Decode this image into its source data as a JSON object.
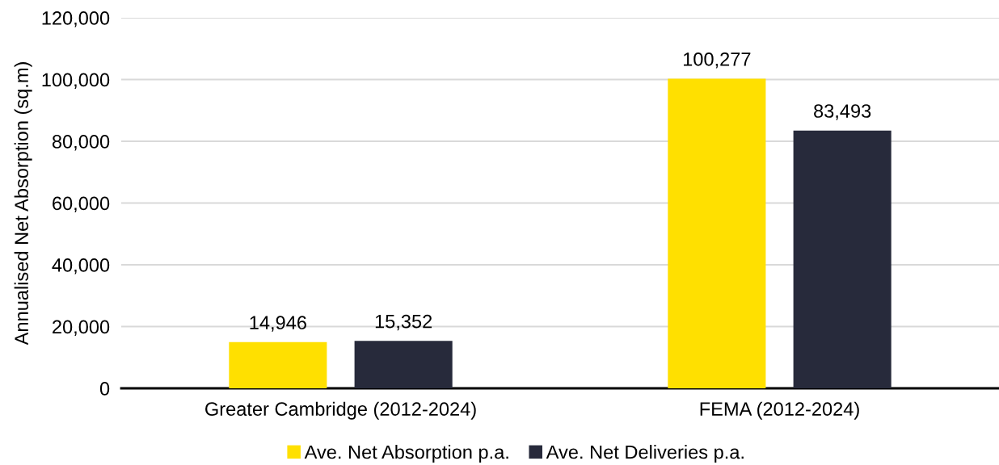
{
  "chart_data": {
    "type": "bar",
    "ylabel": "Annualised Net Absorption (sq.m)",
    "categories": [
      "Greater Cambridge (2012-2024)",
      "FEMA (2012-2024)"
    ],
    "series": [
      {
        "name": "Ave. Net Absorption p.a.",
        "color": "#ffe000",
        "values": [
          14946,
          100277
        ],
        "value_labels": [
          "14,946",
          "100,277"
        ]
      },
      {
        "name": "Ave. Net Deliveries p.a.",
        "color": "#272a3b",
        "values": [
          15352,
          83493
        ],
        "value_labels": [
          "15,352",
          "83,493"
        ]
      }
    ],
    "ylim": [
      0,
      120000
    ],
    "yticks": [
      0,
      {
        "value": 20000,
        "label": "20,000"
      },
      {
        "value": 40000,
        "label": "40,000"
      },
      {
        "value": 60000,
        "label": "60,000"
      },
      {
        "value": 80000,
        "label": "80,000"
      },
      {
        "value": 100000,
        "label": "100,000"
      },
      {
        "value": 120000,
        "label": "120,000"
      }
    ],
    "grid": "y",
    "legend": "bottom"
  }
}
